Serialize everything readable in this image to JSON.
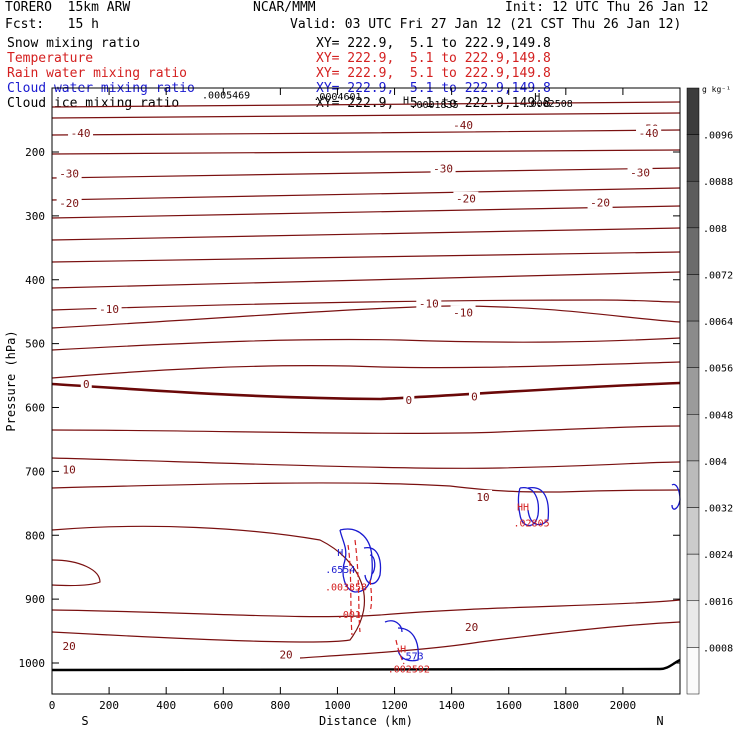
{
  "header": {
    "model": "TORERO  15km ARW",
    "center": "NCAR/MMM",
    "init": "Init: 12 UTC Thu 26 Jan 12",
    "fcst": "Fcst:   15 h",
    "valid": "Valid: 03 UTC Fri 27 Jan 12 (21 CST Thu 26 Jan 12)"
  },
  "legend": [
    {
      "field": "Snow mixing ratio",
      "xy": "XY= 222.9,  5.1 to 222.9,149.8",
      "color": "#000000"
    },
    {
      "field": "Temperature",
      "xy": "XY= 222.9,  5.1 to 222.9,149.8",
      "color": "#d42020"
    },
    {
      "field": "Rain water mixing ratio",
      "xy": "XY= 222.9,  5.1 to 222.9,149.8",
      "color": "#d42020"
    },
    {
      "field": "Cloud water mixing ratio",
      "xy": "XY= 222.9,  5.1 to 222.9,149.8",
      "color": "#1a1ad0"
    },
    {
      "field": "Cloud ice mixing ratio",
      "xy": "XY= 222.9,  5.1 to 222.9,149.8",
      "color": "#000000"
    }
  ],
  "chart_data": {
    "type": "cross-section contour",
    "xlabel": "Distance (km)",
    "ylabel": "Pressure (hPa)",
    "xlim": [
      0,
      2200
    ],
    "ylim": [
      1050,
      100
    ],
    "x_ticks": [
      0,
      200,
      400,
      600,
      800,
      1000,
      1200,
      1400,
      1600,
      1800,
      2000
    ],
    "y_ticks": [
      200,
      300,
      400,
      500,
      600,
      700,
      800,
      900,
      1000
    ],
    "x_end_labels": {
      "left": "S",
      "right": "N"
    },
    "colorbar": {
      "unit": "g kg⁻¹",
      "ticks": [
        ".0096",
        ".0088",
        ".008",
        ".0072",
        ".0064",
        ".0056",
        ".0048",
        ".004",
        ".0032",
        ".0024",
        ".0016",
        ".0008"
      ]
    },
    "temperature_labels": [
      {
        "text": "-50",
        "x": 2090,
        "p": 163
      },
      {
        "text": "-40",
        "x": 100,
        "p": 170
      },
      {
        "text": "-40",
        "x": 1440,
        "p": 158
      },
      {
        "text": "-40",
        "x": 2090,
        "p": 170
      },
      {
        "text": "-30",
        "x": 60,
        "p": 234
      },
      {
        "text": "-30",
        "x": 1370,
        "p": 226
      },
      {
        "text": "-30",
        "x": 2060,
        "p": 232
      },
      {
        "text": "-20",
        "x": 60,
        "p": 280
      },
      {
        "text": "-20",
        "x": 1450,
        "p": 273
      },
      {
        "text": "-20",
        "x": 1920,
        "p": 279
      },
      {
        "text": "-10",
        "x": 200,
        "p": 446
      },
      {
        "text": "-10",
        "x": 1320,
        "p": 437
      },
      {
        "text": "-10",
        "x": 1440,
        "p": 451
      },
      {
        "text": "0",
        "x": 120,
        "p": 563
      },
      {
        "text": "0",
        "x": 1250,
        "p": 588
      },
      {
        "text": "0",
        "x": 1480,
        "p": 583
      },
      {
        "text": "10",
        "x": 60,
        "p": 697
      },
      {
        "text": "10",
        "x": 1510,
        "p": 740
      },
      {
        "text": "20",
        "x": 60,
        "p": 973
      },
      {
        "text": "20",
        "x": 820,
        "p": 987
      },
      {
        "text": "20",
        "x": 1470,
        "p": 944
      }
    ],
    "annotations": [
      {
        "text": ".0005469",
        "x": 610,
        "p": 110,
        "color": "#000000"
      },
      {
        "text": ".0004601",
        "x": 1000,
        "p": 112,
        "color": "#000000"
      },
      {
        "text": ".0001835",
        "x": 1340,
        "p": 125,
        "color": "#000000"
      },
      {
        "text": ".0002508",
        "x": 1740,
        "p": 123,
        "color": "#000000"
      },
      {
        "text": "H",
        "x": 1240,
        "p": 118,
        "color": "#000000"
      },
      {
        "text": "H",
        "x": 1700,
        "p": 112,
        "color": "#000000"
      },
      {
        "text": "H",
        "x": 1010,
        "p": 826,
        "color": "#1a1ad0"
      },
      {
        "text": ".6554",
        "x": 1010,
        "p": 853,
        "color": "#1a1ad0"
      },
      {
        "text": ".003358",
        "x": 1030,
        "p": 880,
        "color": "#d42020"
      },
      {
        "text": ".001",
        "x": 1040,
        "p": 923,
        "color": "#d42020"
      },
      {
        "text": "H",
        "x": 1230,
        "p": 977,
        "color": "#d42020"
      },
      {
        "text": ".573",
        "x": 1260,
        "p": 988,
        "color": "#1a1ad0"
      },
      {
        "text": ".002592",
        "x": 1250,
        "p": 1009,
        "color": "#d42020"
      },
      {
        "text": "HH",
        "x": 1650,
        "p": 755,
        "color": "#d42020"
      },
      {
        "text": ".02805",
        "x": 1680,
        "p": 780,
        "color": "#d42020"
      }
    ]
  }
}
